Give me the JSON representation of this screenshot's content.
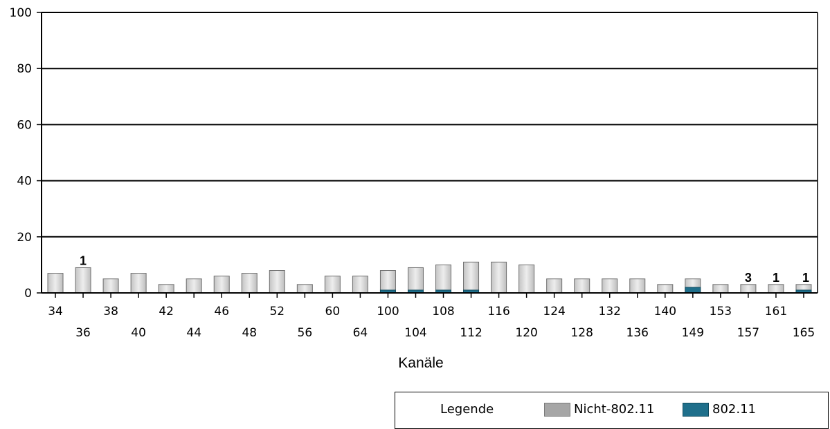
{
  "chart_data": {
    "type": "bar",
    "xlabel": "Kanäle",
    "ylim": [
      0,
      100
    ],
    "yticks": [
      0,
      20,
      40,
      60,
      80,
      100
    ],
    "grid": true,
    "categories": [
      "34",
      "36",
      "38",
      "40",
      "42",
      "44",
      "46",
      "48",
      "52",
      "56",
      "60",
      "64",
      "100",
      "104",
      "108",
      "112",
      "116",
      "120",
      "124",
      "128",
      "132",
      "136",
      "140",
      "149",
      "153",
      "157",
      "161",
      "165"
    ],
    "series": [
      {
        "name": "Nicht-802.11",
        "color": "#a6a6a6",
        "values": [
          7,
          9,
          5,
          7,
          3,
          5,
          6,
          7,
          8,
          3,
          6,
          6,
          7,
          8,
          9,
          10,
          11,
          10,
          5,
          5,
          5,
          5,
          3,
          3,
          3,
          3,
          3,
          2
        ]
      },
      {
        "name": "802.11",
        "color": "#1f6f8b",
        "values": [
          0,
          0,
          0,
          0,
          0,
          0,
          0,
          0,
          0,
          0,
          0,
          0,
          1,
          1,
          1,
          1,
          0,
          0,
          0,
          0,
          0,
          0,
          0,
          2,
          0,
          0,
          0,
          1
        ]
      }
    ],
    "data_labels": {
      "36": "1",
      "157": "3",
      "161": "1",
      "165": "1"
    },
    "legend": {
      "title": "Legende",
      "placement": "bottom-right"
    }
  }
}
